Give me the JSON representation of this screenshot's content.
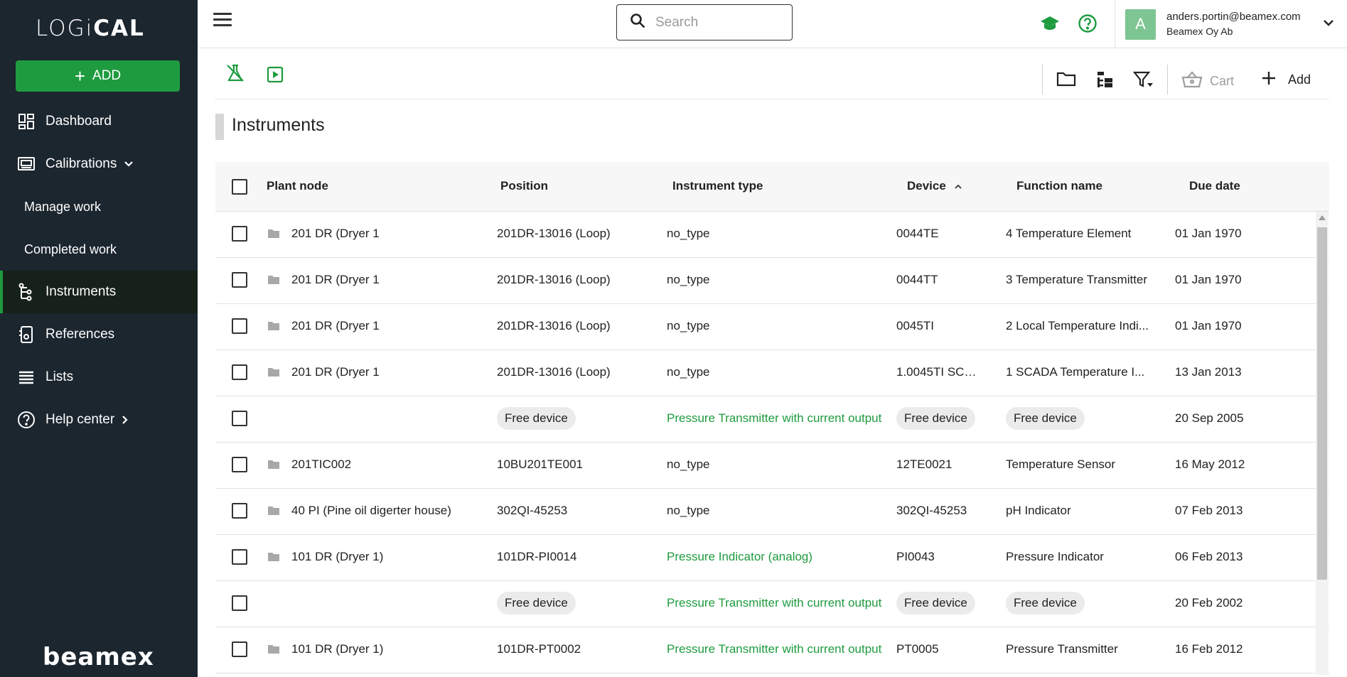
{
  "app": {
    "logo_text_a": "LOGi",
    "logo_text_b": "CAL",
    "footer_brand": "beamex"
  },
  "sidebar": {
    "add_label": "ADD",
    "items": [
      {
        "label": "Dashboard",
        "icon": "dashboard-icon"
      },
      {
        "label": "Calibrations",
        "icon": "calibrations-icon"
      },
      {
        "label": "Manage work"
      },
      {
        "label": "Completed work"
      },
      {
        "label": "Instruments",
        "icon": "instruments-icon",
        "active": true
      },
      {
        "label": "References",
        "icon": "references-icon"
      },
      {
        "label": "Lists",
        "icon": "lists-icon"
      },
      {
        "label": "Help center",
        "icon": "help-icon"
      }
    ]
  },
  "topbar": {
    "search_placeholder": "Search",
    "user": {
      "initial": "A",
      "email": "anders.portin@beamex.com",
      "org": "Beamex Oy Ab"
    }
  },
  "toolbar": {
    "cart_label": "Cart",
    "add_label": "Add"
  },
  "page": {
    "title": "Instruments"
  },
  "colors": {
    "accent": "#1e9b3f",
    "sidebar_bg": "#1b262f"
  },
  "table": {
    "headers": [
      "Plant node",
      "Position",
      "Instrument type",
      "Device",
      "Function name",
      "Due date"
    ],
    "sort_column": "Device",
    "rows": [
      {
        "plant": "201 DR (Dryer 1",
        "position": "201DR-13016 (Loop)",
        "type": "no_type",
        "device": "0044TE",
        "function": "4 Temperature Element",
        "due": "01 Jan 1970"
      },
      {
        "plant": "201 DR (Dryer 1",
        "position": "201DR-13016 (Loop)",
        "type": "no_type",
        "device": "0044TT",
        "function": "3 Temperature Transmitter",
        "due": "01 Jan 1970"
      },
      {
        "plant": "201 DR (Dryer 1",
        "position": "201DR-13016 (Loop)",
        "type": "no_type",
        "device": "0045TI",
        "function": "2 Local Temperature Indi...",
        "due": "01 Jan 1970"
      },
      {
        "plant": "201 DR (Dryer 1",
        "position": "201DR-13016 (Loop)",
        "type": "no_type",
        "device": "1.0045TI SCA...",
        "function": "1 SCADA Temperature I...",
        "due": "13 Jan 2013"
      },
      {
        "plant": "",
        "position": "Free device",
        "type": "Pressure Transmitter with current output",
        "device": "Free device",
        "function": "Free device",
        "due": "20 Sep 2005",
        "free": true
      },
      {
        "plant": "201TIC002",
        "position": "10BU201TE001",
        "type": "no_type",
        "device": "12TE0021",
        "function": "Temperature Sensor",
        "due": "16 May 2012"
      },
      {
        "plant": "40 PI (Pine oil digerter house)",
        "position": "302QI-45253",
        "type": "no_type",
        "device": "302QI-45253",
        "function": "pH Indicator",
        "due": "07 Feb 2013"
      },
      {
        "plant": "101 DR (Dryer 1)",
        "position": "101DR-PI0014",
        "type": "Pressure Indicator (analog)",
        "device": "PI0043",
        "function": "Pressure Indicator",
        "due": "06 Feb 2013",
        "green_type": true
      },
      {
        "plant": "",
        "position": "Free device",
        "type": "Pressure Transmitter with current output",
        "device": "Free device",
        "function": "Free device",
        "due": "20 Feb 2002",
        "free": true
      },
      {
        "plant": "101 DR (Dryer 1)",
        "position": "101DR-PT0002",
        "type": "Pressure Transmitter with current output",
        "device": "PT0005",
        "function": "Pressure Transmitter",
        "due": "16 Feb 2012",
        "green_type": true
      }
    ]
  }
}
